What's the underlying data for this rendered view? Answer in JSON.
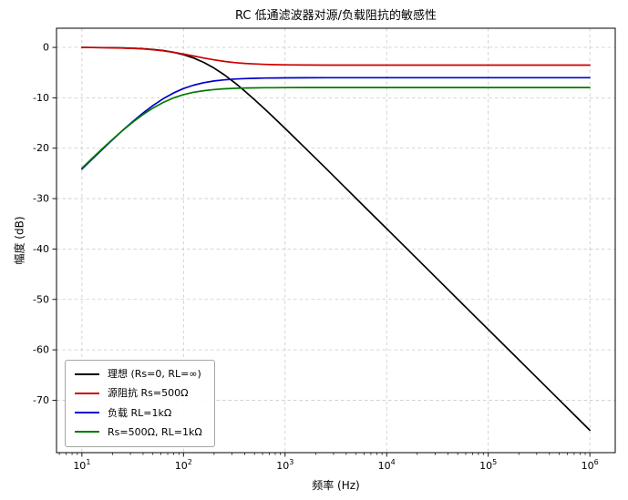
{
  "figure": {
    "title": "RC 低通滤波器对源/负载阻抗的敏感性",
    "xlabel": "频率 (Hz)",
    "ylabel": "幅度 (dB)"
  },
  "chart_data": {
    "type": "line",
    "title": "RC 低通滤波器对源/负载阻抗的敏感性",
    "xlabel": "频率 (Hz)",
    "ylabel": "幅度 (dB)",
    "x_scale": "log",
    "grid": true,
    "legend_position": "lower left",
    "xlim_log10": [
      0.75,
      6.25
    ],
    "ylim": [
      -80.4,
      3.8
    ],
    "x_ticks": [
      {
        "value": 10,
        "label": "10^1"
      },
      {
        "value": 100,
        "label": "10^2"
      },
      {
        "value": 1000,
        "label": "10^3"
      },
      {
        "value": 10000,
        "label": "10^4"
      },
      {
        "value": 100000,
        "label": "10^5"
      },
      {
        "value": 1000000,
        "label": "10^6"
      }
    ],
    "y_ticks": [
      {
        "value": 0,
        "label": "0"
      },
      {
        "value": -10,
        "label": "-10"
      },
      {
        "value": -20,
        "label": "-20"
      },
      {
        "value": -30,
        "label": "-30"
      },
      {
        "value": -40,
        "label": "-40"
      },
      {
        "value": -50,
        "label": "-50"
      },
      {
        "value": -60,
        "label": "-60"
      },
      {
        "value": -70,
        "label": "-70"
      }
    ],
    "x": [
      10,
      12.6,
      15.8,
      20,
      25.1,
      31.6,
      39.8,
      50.1,
      63.1,
      79.4,
      100,
      126,
      158,
      200,
      251,
      316,
      398,
      501,
      631,
      794,
      1000,
      1585,
      2512,
      3981,
      6310,
      10000,
      25119,
      63096,
      158489,
      398107,
      1000000
    ],
    "series": [
      {
        "name": "理想 (Rs=0, RL=∞)",
        "color": "#000000",
        "values": [
          -0.02,
          -0.03,
          -0.04,
          -0.07,
          -0.11,
          -0.17,
          -0.26,
          -0.41,
          -0.63,
          -0.97,
          -1.45,
          -2.11,
          -2.98,
          -4.12,
          -5.42,
          -6.94,
          -8.61,
          -10.38,
          -12.23,
          -14.13,
          -16.07,
          -20.01,
          -23.98,
          -27.97,
          -31.97,
          -35.96,
          -43.96,
          -51.97,
          -59.96,
          -67.96,
          -75.96
        ]
      },
      {
        "name": "源阻抗 Rs=500Ω",
        "color": "#cc0000",
        "values": [
          -0.02,
          -0.03,
          -0.05,
          -0.08,
          -0.13,
          -0.2,
          -0.31,
          -0.46,
          -0.68,
          -0.97,
          -1.32,
          -1.71,
          -2.1,
          -2.47,
          -2.77,
          -3.01,
          -3.18,
          -3.29,
          -3.38,
          -3.43,
          -3.46,
          -3.5,
          -3.51,
          -3.52,
          -3.52,
          -3.52,
          -3.52,
          -3.52,
          -3.52,
          -3.52,
          -3.52
        ]
      },
      {
        "name": "负载 RL=1kΩ",
        "color": "#0000cc",
        "values": [
          -24.15,
          -22.18,
          -20.28,
          -18.33,
          -16.5,
          -14.72,
          -13.05,
          -11.52,
          -10.18,
          -9.06,
          -8.17,
          -7.49,
          -7.01,
          -6.67,
          -6.44,
          -6.29,
          -6.19,
          -6.13,
          -6.09,
          -6.06,
          -6.05,
          -6.03,
          -6.02,
          -6.02,
          -6.02,
          -6.02,
          -6.02,
          -6.02,
          -6.02,
          -6.02,
          -6.02
        ]
      },
      {
        "name": "Rs=500Ω, RL=1kΩ",
        "color": "#007a00",
        "values": [
          -23.96,
          -22.02,
          -20.15,
          -18.26,
          -16.51,
          -14.85,
          -13.34,
          -12.02,
          -10.92,
          -10.04,
          -9.38,
          -8.91,
          -8.59,
          -8.36,
          -8.22,
          -8.13,
          -8.06,
          -8.03,
          -8.0,
          -7.99,
          -7.98,
          -7.97,
          -7.96,
          -7.96,
          -7.96,
          -7.96,
          -7.96,
          -7.96,
          -7.96,
          -7.96,
          -7.96
        ]
      }
    ]
  }
}
